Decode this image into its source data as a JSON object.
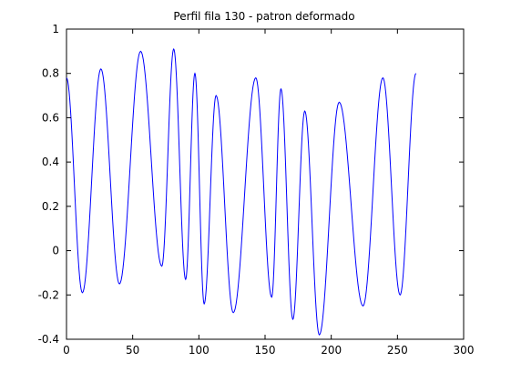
{
  "window": {
    "background": "#ffffff"
  },
  "chart_data": {
    "type": "line",
    "title": "Perfil fila 130 - patron deformado",
    "xlabel": "",
    "ylabel": "",
    "xlim": [
      0,
      300
    ],
    "ylim": [
      -0.4,
      1
    ],
    "xticks": [
      0,
      50,
      100,
      150,
      200,
      250,
      300
    ],
    "yticks": [
      -0.4,
      -0.2,
      0,
      0.2,
      0.4,
      0.6,
      0.8,
      1
    ],
    "xtick_labels": [
      "0",
      "50",
      "100",
      "150",
      "200",
      "250",
      "300"
    ],
    "ytick_labels": [
      "-0.4",
      "-0.2",
      "0",
      "0.2",
      "0.4",
      "0.6",
      "0.8",
      "1"
    ],
    "grid": false,
    "legend": "none",
    "line_color": "#0000ff",
    "axes_color": "#000000",
    "series": [
      {
        "x": [
          0,
          12,
          26,
          40,
          56,
          72,
          81,
          90,
          97,
          104,
          113,
          126,
          143,
          155,
          162,
          171,
          180,
          191,
          206,
          224,
          239,
          252,
          264
        ],
        "values": [
          0.78,
          -0.19,
          0.82,
          -0.15,
          0.9,
          -0.07,
          0.91,
          -0.13,
          0.8,
          -0.24,
          0.7,
          -0.28,
          0.78,
          -0.21,
          0.73,
          -0.31,
          0.63,
          -0.38,
          0.67,
          -0.25,
          0.78,
          -0.2,
          0.8
        ]
      }
    ]
  }
}
